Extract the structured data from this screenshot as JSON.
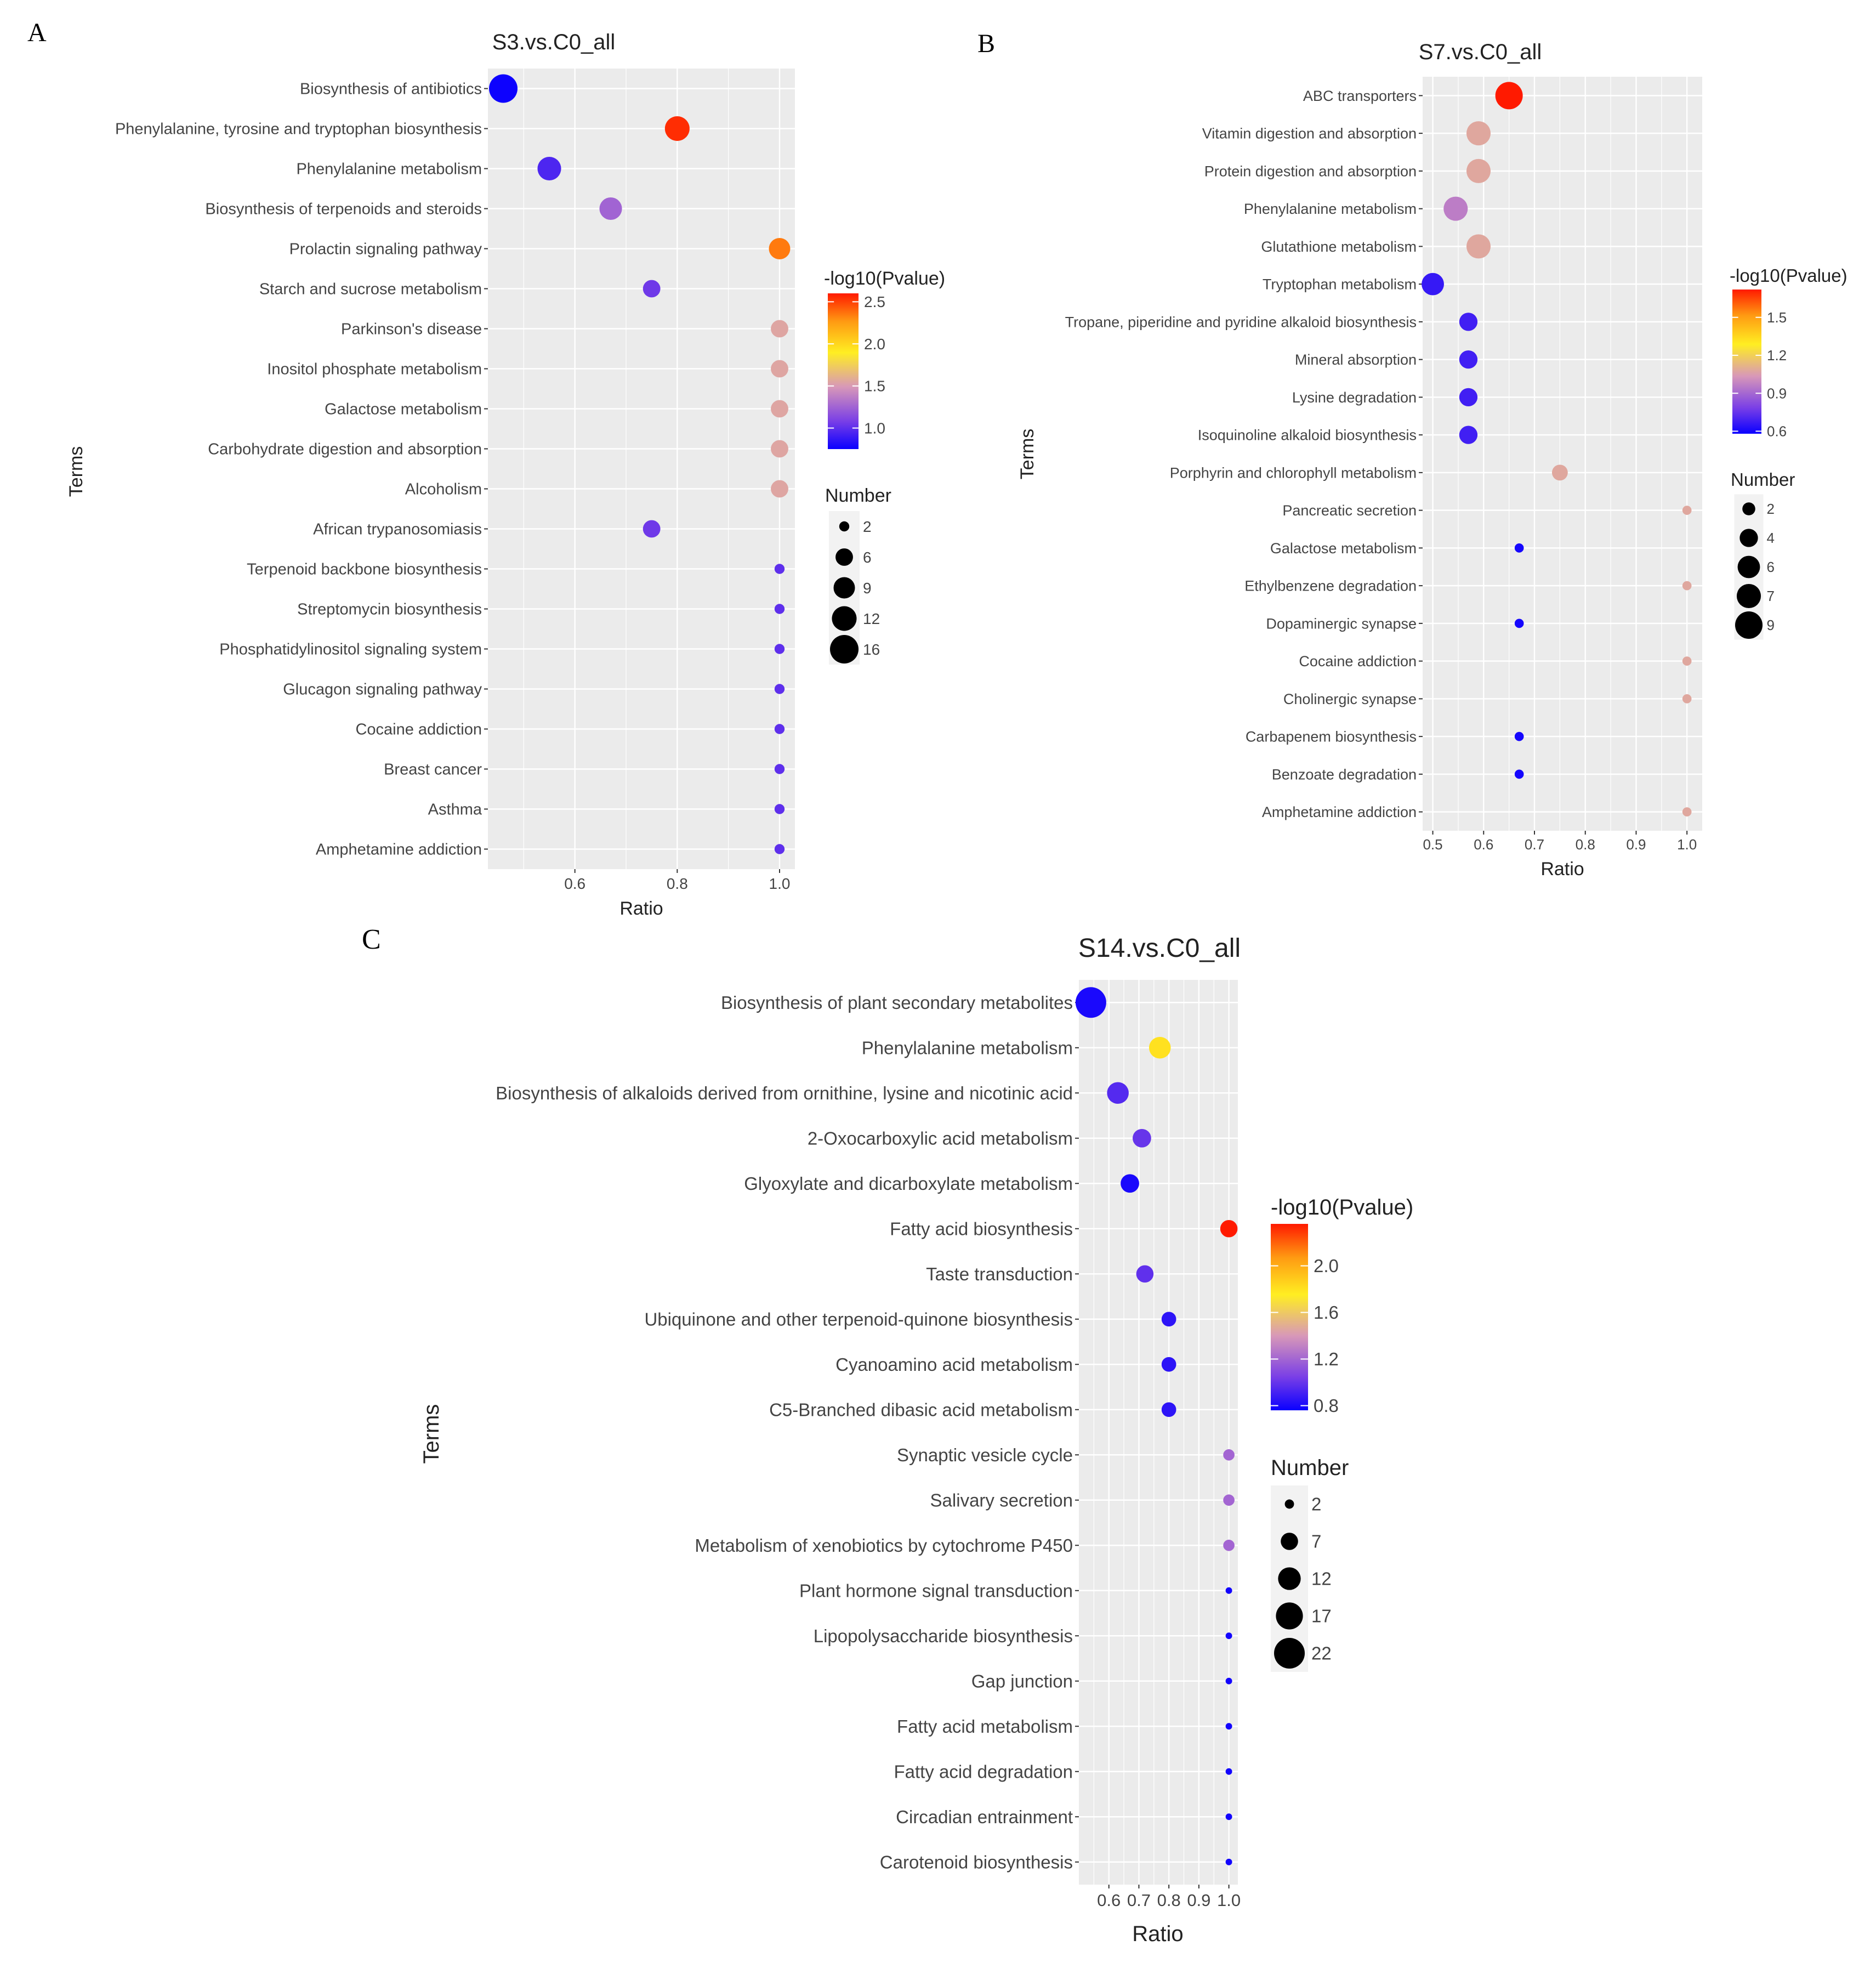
{
  "figure": {
    "ylabel": "Terms",
    "xlabel": "Ratio",
    "colorbar_title": "-log10(Pvalue)",
    "size_title": "Number"
  },
  "chart_data": [
    {
      "panel": "A",
      "type": "scatter",
      "title": "S3.vs.C0_all",
      "xlabel": "Ratio",
      "ylabel": "Terms",
      "xlim": [
        0.43,
        1.03
      ],
      "xticks": [
        0.6,
        0.8,
        1.0
      ],
      "xtick_labels": [
        "0.6",
        "0.8",
        "1.0"
      ],
      "color_range": [
        0.75,
        2.6
      ],
      "color_ticks": [
        1.0,
        1.5,
        2.0,
        2.5
      ],
      "color_tick_labels": [
        "1.0",
        "1.5",
        "2.0",
        "2.5"
      ],
      "size_legend": [
        2,
        6,
        9,
        12,
        16
      ],
      "size_max": 16,
      "points": [
        {
          "term": "Biosynthesis of antibiotics",
          "ratio": 0.46,
          "neglogp": 0.76,
          "number": 16
        },
        {
          "term": "Phenylalanine, tyrosine and tryptophan biosynthesis",
          "ratio": 0.8,
          "neglogp": 2.55,
          "number": 12
        },
        {
          "term": "Phenylalanine metabolism",
          "ratio": 0.55,
          "neglogp": 0.95,
          "number": 11
        },
        {
          "term": "Biosynthesis of terpenoids and steroids",
          "ratio": 0.67,
          "neglogp": 1.25,
          "number": 10
        },
        {
          "term": "Prolactin signaling pathway",
          "ratio": 1.0,
          "neglogp": 2.35,
          "number": 9
        },
        {
          "term": "Starch and sucrose metabolism",
          "ratio": 0.75,
          "neglogp": 1.05,
          "number": 6
        },
        {
          "term": "Parkinson's disease",
          "ratio": 1.0,
          "neglogp": 1.55,
          "number": 6
        },
        {
          "term": "Inositol phosphate metabolism",
          "ratio": 1.0,
          "neglogp": 1.55,
          "number": 6
        },
        {
          "term": "Galactose metabolism",
          "ratio": 1.0,
          "neglogp": 1.55,
          "number": 6
        },
        {
          "term": "Carbohydrate digestion and absorption",
          "ratio": 1.0,
          "neglogp": 1.55,
          "number": 6
        },
        {
          "term": "Alcoholism",
          "ratio": 1.0,
          "neglogp": 1.55,
          "number": 6
        },
        {
          "term": "African trypanosomiasis",
          "ratio": 0.75,
          "neglogp": 1.05,
          "number": 6
        },
        {
          "term": "Terpenoid backbone biosynthesis",
          "ratio": 1.0,
          "neglogp": 1.0,
          "number": 2
        },
        {
          "term": "Streptomycin biosynthesis",
          "ratio": 1.0,
          "neglogp": 1.0,
          "number": 2
        },
        {
          "term": "Phosphatidylinositol signaling system",
          "ratio": 1.0,
          "neglogp": 1.0,
          "number": 2
        },
        {
          "term": "Glucagon signaling pathway",
          "ratio": 1.0,
          "neglogp": 1.0,
          "number": 2
        },
        {
          "term": "Cocaine addiction",
          "ratio": 1.0,
          "neglogp": 1.0,
          "number": 2
        },
        {
          "term": "Breast cancer",
          "ratio": 1.0,
          "neglogp": 1.0,
          "number": 2
        },
        {
          "term": "Asthma",
          "ratio": 1.0,
          "neglogp": 1.0,
          "number": 2
        },
        {
          "term": "Amphetamine addiction",
          "ratio": 1.0,
          "neglogp": 1.0,
          "number": 2
        }
      ]
    },
    {
      "panel": "B",
      "type": "scatter",
      "title": "S7.vs.C0_all",
      "xlabel": "Ratio",
      "ylabel": "Terms",
      "xlim": [
        0.48,
        1.03
      ],
      "xticks": [
        0.5,
        0.6,
        0.7,
        0.8,
        0.9,
        1.0
      ],
      "xtick_labels": [
        "0.5",
        "0.6",
        "0.7",
        "0.8",
        "0.9",
        "1.0"
      ],
      "color_range": [
        0.58,
        1.72
      ],
      "color_ticks": [
        0.6,
        0.9,
        1.2,
        1.5
      ],
      "color_tick_labels": [
        "0.6",
        "0.9",
        "1.2",
        "1.5"
      ],
      "size_legend": [
        2,
        4,
        6,
        7,
        9
      ],
      "size_max": 9,
      "points": [
        {
          "term": "ABC transporters",
          "ratio": 0.65,
          "neglogp": 1.72,
          "number": 9
        },
        {
          "term": "Vitamin digestion and absorption",
          "ratio": 0.59,
          "neglogp": 1.08,
          "number": 7
        },
        {
          "term": "Protein digestion and absorption",
          "ratio": 0.59,
          "neglogp": 1.08,
          "number": 7
        },
        {
          "term": "Phenylalanine metabolism",
          "ratio": 0.545,
          "neglogp": 0.96,
          "number": 7
        },
        {
          "term": "Glutathione metabolism",
          "ratio": 0.59,
          "neglogp": 1.08,
          "number": 7
        },
        {
          "term": "Tryptophan metabolism",
          "ratio": 0.5,
          "neglogp": 0.66,
          "number": 6
        },
        {
          "term": "Tropane, piperidine and pyridine alkaloid biosynthesis",
          "ratio": 0.57,
          "neglogp": 0.68,
          "number": 4
        },
        {
          "term": "Mineral absorption",
          "ratio": 0.57,
          "neglogp": 0.68,
          "number": 4
        },
        {
          "term": "Lysine degradation",
          "ratio": 0.57,
          "neglogp": 0.68,
          "number": 4
        },
        {
          "term": "Isoquinoline alkaloid biosynthesis",
          "ratio": 0.57,
          "neglogp": 0.68,
          "number": 4
        },
        {
          "term": "Porphyrin and chlorophyll metabolism",
          "ratio": 0.75,
          "neglogp": 1.08,
          "number": 3
        },
        {
          "term": "Pancreatic secretion",
          "ratio": 1.0,
          "neglogp": 1.08,
          "number": 1
        },
        {
          "term": "Galactose metabolism",
          "ratio": 0.67,
          "neglogp": 0.6,
          "number": 1
        },
        {
          "term": "Ethylbenzene degradation",
          "ratio": 1.0,
          "neglogp": 1.08,
          "number": 1
        },
        {
          "term": "Dopaminergic synapse",
          "ratio": 0.67,
          "neglogp": 0.6,
          "number": 1
        },
        {
          "term": "Cocaine addiction",
          "ratio": 1.0,
          "neglogp": 1.08,
          "number": 1
        },
        {
          "term": "Cholinergic synapse",
          "ratio": 1.0,
          "neglogp": 1.08,
          "number": 1
        },
        {
          "term": "Carbapenem biosynthesis",
          "ratio": 0.67,
          "neglogp": 0.6,
          "number": 1
        },
        {
          "term": "Benzoate degradation",
          "ratio": 0.67,
          "neglogp": 0.6,
          "number": 1
        },
        {
          "term": "Amphetamine addiction",
          "ratio": 1.0,
          "neglogp": 1.08,
          "number": 1
        }
      ]
    },
    {
      "panel": "C",
      "type": "scatter",
      "title": "S14.vs.C0_all",
      "xlabel": "Ratio",
      "ylabel": "Terms",
      "xlim": [
        0.5,
        1.03
      ],
      "xticks": [
        0.6,
        0.7,
        0.8,
        0.9,
        1.0
      ],
      "xtick_labels": [
        "0.6",
        "0.7",
        "0.8",
        "0.9",
        "1.0"
      ],
      "color_range": [
        0.76,
        2.36
      ],
      "color_ticks": [
        0.8,
        1.2,
        1.6,
        2.0
      ],
      "color_tick_labels": [
        "0.8",
        "1.2",
        "1.6",
        "2.0"
      ],
      "size_legend": [
        2,
        7,
        12,
        17,
        22
      ],
      "size_max": 22,
      "points": [
        {
          "term": "Biosynthesis of plant secondary metabolites",
          "ratio": 0.54,
          "neglogp": 0.8,
          "number": 22
        },
        {
          "term": "Phenylalanine metabolism",
          "ratio": 0.77,
          "neglogp": 1.8,
          "number": 11
        },
        {
          "term": "Biosynthesis of alkaloids derived from ornithine, lysine and nicotinic acid",
          "ratio": 0.63,
          "neglogp": 0.95,
          "number": 11
        },
        {
          "term": "2-Oxocarboxylic acid metabolism",
          "ratio": 0.71,
          "neglogp": 1.0,
          "number": 8
        },
        {
          "term": "Glyoxylate and dicarboxylate metabolism",
          "ratio": 0.67,
          "neglogp": 0.8,
          "number": 8
        },
        {
          "term": "Fatty acid biosynthesis",
          "ratio": 1.0,
          "neglogp": 2.36,
          "number": 7
        },
        {
          "term": "Taste transduction",
          "ratio": 0.72,
          "neglogp": 0.98,
          "number": 7
        },
        {
          "term": "Ubiquinone and other terpenoid-quinone biosynthesis",
          "ratio": 0.8,
          "neglogp": 0.85,
          "number": 5
        },
        {
          "term": "Cyanoamino acid metabolism",
          "ratio": 0.8,
          "neglogp": 0.85,
          "number": 5
        },
        {
          "term": "C5-Branched dibasic acid metabolism",
          "ratio": 0.8,
          "neglogp": 0.85,
          "number": 5
        },
        {
          "term": "Synaptic vesicle cycle",
          "ratio": 1.0,
          "neglogp": 1.2,
          "number": 3
        },
        {
          "term": "Salivary secretion",
          "ratio": 1.0,
          "neglogp": 1.2,
          "number": 3
        },
        {
          "term": "Metabolism of xenobiotics by cytochrome P450",
          "ratio": 1.0,
          "neglogp": 1.2,
          "number": 3
        },
        {
          "term": "Plant hormone signal transduction",
          "ratio": 1.0,
          "neglogp": 0.78,
          "number": 1
        },
        {
          "term": "Lipopolysaccharide biosynthesis",
          "ratio": 1.0,
          "neglogp": 0.78,
          "number": 1
        },
        {
          "term": "Gap junction",
          "ratio": 1.0,
          "neglogp": 0.78,
          "number": 1
        },
        {
          "term": "Fatty acid metabolism",
          "ratio": 1.0,
          "neglogp": 0.78,
          "number": 1
        },
        {
          "term": "Fatty acid degradation",
          "ratio": 1.0,
          "neglogp": 0.78,
          "number": 1
        },
        {
          "term": "Circadian entrainment",
          "ratio": 1.0,
          "neglogp": 0.78,
          "number": 1
        },
        {
          "term": "Carotenoid biosynthesis",
          "ratio": 1.0,
          "neglogp": 0.78,
          "number": 1
        }
      ]
    }
  ]
}
